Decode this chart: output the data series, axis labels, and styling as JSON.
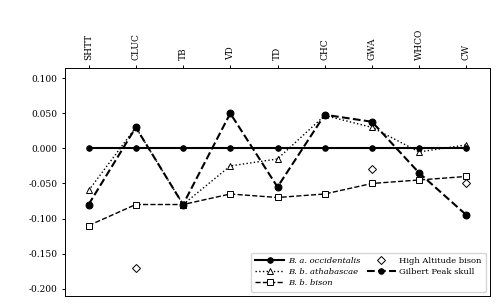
{
  "categories": [
    "SHTT",
    "CLUC",
    "TB",
    "VD",
    "TD",
    "CHC",
    "GWA",
    "WHCO",
    "CW"
  ],
  "series_order": [
    "B. a. occidentalis",
    "B. b. athabascae",
    "B. b. bison",
    "High Altitude bison",
    "Gilbert Peak skull"
  ],
  "series": {
    "B. a. occidentalis": {
      "values": [
        0.0,
        0.0,
        0.0,
        0.0,
        0.0,
        0.0,
        0.0,
        0.0,
        0.0
      ],
      "linestyle": "-",
      "marker": "o",
      "markersize": 4,
      "color": "black",
      "linewidth": 1.5,
      "markerfacecolor": "black",
      "zorder": 5
    },
    "B. b. athabascae": {
      "values": [
        -0.06,
        0.03,
        -0.08,
        -0.025,
        -0.015,
        0.047,
        0.03,
        -0.005,
        0.005
      ],
      "linestyle": ":",
      "marker": "^",
      "markersize": 4,
      "color": "black",
      "linewidth": 1.0,
      "markerfacecolor": "white",
      "zorder": 3
    },
    "B. b. bison": {
      "values": [
        -0.11,
        -0.08,
        -0.08,
        -0.065,
        -0.07,
        -0.065,
        -0.05,
        -0.045,
        -0.04
      ],
      "linestyle": "--",
      "marker": "s",
      "markersize": 4,
      "color": "black",
      "linewidth": 1.0,
      "markerfacecolor": "white",
      "zorder": 3
    },
    "High Altitude bison": {
      "values": [
        null,
        -0.17,
        null,
        null,
        null,
        null,
        -0.03,
        null,
        -0.05
      ],
      "linestyle": "none",
      "marker": "D",
      "markersize": 4,
      "color": "black",
      "linewidth": 1.0,
      "markerfacecolor": "white",
      "zorder": 3
    },
    "Gilbert Peak skull": {
      "values": [
        -0.08,
        0.03,
        -0.08,
        0.05,
        -0.055,
        0.048,
        0.038,
        -0.035,
        -0.095
      ],
      "linestyle": "--",
      "marker": "o",
      "markersize": 5,
      "color": "black",
      "linewidth": 1.5,
      "markerfacecolor": "black",
      "zorder": 4
    }
  },
  "ylim": [
    -0.21,
    0.115
  ],
  "yticks": [
    -0.2,
    -0.15,
    -0.1,
    -0.05,
    0.0,
    0.05,
    0.1
  ],
  "ytick_labels": [
    "-0.200",
    "-0.150",
    "-0.100",
    "-0.050",
    "0.000",
    "0.050",
    "0.100"
  ],
  "title": "",
  "figsize": [
    5.0,
    3.08
  ],
  "dpi": 100,
  "font_family": "serif",
  "legend": {
    "entries": [
      {
        "label": "B. a. occidentalis",
        "italic": true,
        "linestyle": "-",
        "linewidth": 1.5,
        "marker": "o",
        "mfc": "black",
        "col": 0
      },
      {
        "label": "B. b. athabascae",
        "italic": true,
        "linestyle": ":",
        "linewidth": 1.0,
        "marker": "^",
        "mfc": "white",
        "col": 1
      },
      {
        "label": "B. b. bison",
        "italic": true,
        "linestyle": "--",
        "linewidth": 1.0,
        "marker": "s",
        "mfc": "white",
        "col": 0
      },
      {
        "label": "High Altitude bison",
        "italic": false,
        "linestyle": "none",
        "linewidth": 1.0,
        "marker": "D",
        "mfc": "white",
        "col": 1
      },
      {
        "label": "Gilbert Peak skull",
        "italic": false,
        "linestyle": "--",
        "linewidth": 1.5,
        "marker": "o",
        "mfc": "black",
        "col": 0
      }
    ]
  }
}
